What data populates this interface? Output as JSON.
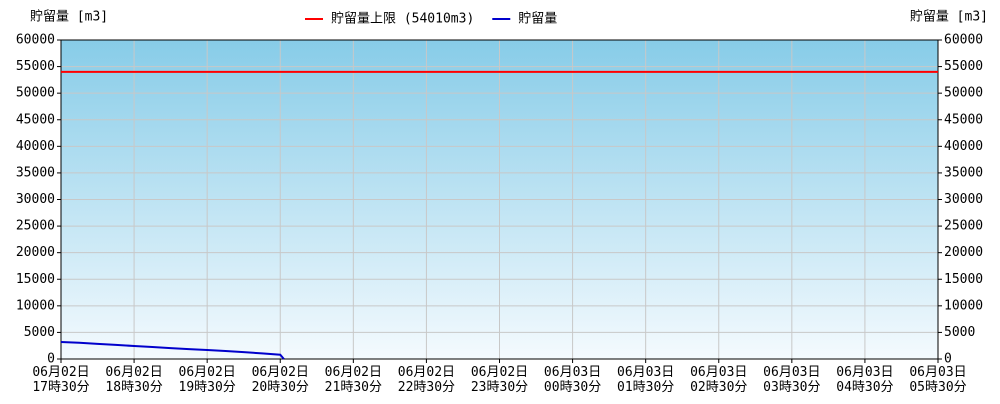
{
  "chart_data": {
    "type": "line",
    "y_axis_label": "貯留量 [m3]",
    "y2_axis_label": "貯留量 [m3]",
    "x": [
      0,
      0.25,
      0.5,
      0.75,
      1,
      1.25,
      1.5,
      1.75,
      2,
      2.25,
      2.5,
      2.75,
      3,
      3.05
    ],
    "series": [
      {
        "name": "貯留量上限 (54010m3)",
        "color": "#ff0000",
        "constant": 54010
      },
      {
        "name": "貯留量",
        "color": "#0000cc",
        "values": [
          3200,
          3050,
          2850,
          2650,
          2450,
          2250,
          2050,
          1850,
          1700,
          1500,
          1300,
          1050,
          800,
          0
        ]
      }
    ],
    "xlim": [
      0,
      12
    ],
    "xticks": [
      {
        "value": 0,
        "label": [
          "06月02日",
          "17時30分"
        ]
      },
      {
        "value": 1,
        "label": [
          "06月02日",
          "18時30分"
        ]
      },
      {
        "value": 2,
        "label": [
          "06月02日",
          "19時30分"
        ]
      },
      {
        "value": 3,
        "label": [
          "06月02日",
          "20時30分"
        ]
      },
      {
        "value": 4,
        "label": [
          "06月02日",
          "21時30分"
        ]
      },
      {
        "value": 5,
        "label": [
          "06月02日",
          "22時30分"
        ]
      },
      {
        "value": 6,
        "label": [
          "06月02日",
          "23時30分"
        ]
      },
      {
        "value": 7,
        "label": [
          "06月03日",
          "00時30分"
        ]
      },
      {
        "value": 8,
        "label": [
          "06月03日",
          "01時30分"
        ]
      },
      {
        "value": 9,
        "label": [
          "06月03日",
          "02時30分"
        ]
      },
      {
        "value": 10,
        "label": [
          "06月03日",
          "03時30分"
        ]
      },
      {
        "value": 11,
        "label": [
          "06月03日",
          "04時30分"
        ]
      },
      {
        "value": 12,
        "label": [
          "06月03日",
          "05時30分"
        ]
      }
    ],
    "ylim": [
      0,
      60000
    ],
    "yticks": [
      0,
      5000,
      10000,
      15000,
      20000,
      25000,
      30000,
      35000,
      40000,
      45000,
      50000,
      55000,
      60000
    ],
    "grid": true,
    "legend": "top"
  }
}
